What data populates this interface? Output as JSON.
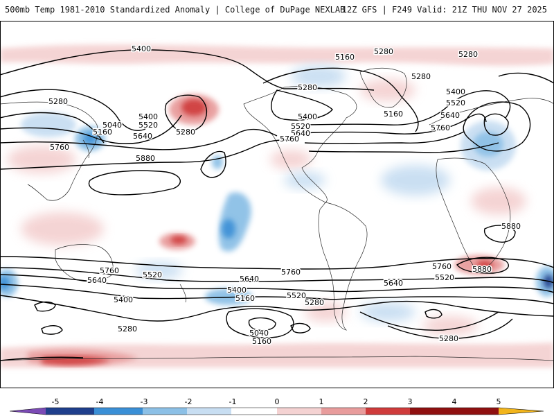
{
  "header": {
    "title": "500mb Temp 1981-2010 Standardized Anomaly | College of DuPage NEXLAB",
    "run_info": "12Z GFS | F249 Valid: 21Z THU NOV 27 2025"
  },
  "contour_labels": [
    "5400",
    "5160",
    "5280",
    "5280",
    "5280",
    "5280",
    "5040",
    "5160",
    "5400",
    "5520",
    "5640",
    "5760",
    "5880",
    "5280",
    "5400",
    "5520",
    "5640",
    "5760",
    "5160",
    "5280",
    "5400",
    "5520",
    "5640",
    "5760",
    "5880",
    "5760",
    "5640",
    "5520",
    "5400",
    "5280",
    "5760",
    "5640",
    "5520",
    "5400",
    "5160",
    "5280",
    "5040",
    "5160",
    "5280",
    "5520",
    "5640",
    "5760",
    "5880"
  ],
  "colorbar": {
    "ticks": [
      "-5",
      "-4",
      "-3",
      "-2",
      "-1",
      "0",
      "1",
      "2",
      "3",
      "4",
      "5"
    ],
    "colors": {
      "minus_extreme": "#7b4bb5",
      "minus5": "#1f3f8c",
      "minus4": "#3a8fd6",
      "minus3": "#8cc0e6",
      "minus2": "#c8def2",
      "minus1": "#ffffff",
      "plus1": "#f4d2d2",
      "plus2": "#e89c9c",
      "plus3": "#cf3b3b",
      "plus4": "#8f1010",
      "plus_extreme": "#f2b51c"
    }
  }
}
